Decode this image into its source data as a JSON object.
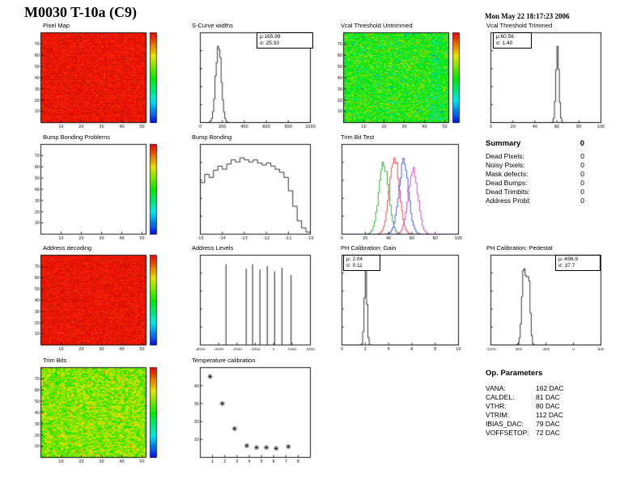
{
  "header": {
    "title": "M0030 T-10a (C9)",
    "date": "Mon May 22 18:17:23 2006"
  },
  "summary": {
    "title": "Summary",
    "total": "0",
    "rows": [
      {
        "label": "Dead Pixels:",
        "value": "0"
      },
      {
        "label": "Noisy Pixels:",
        "value": "0"
      },
      {
        "label": "Mask defects:",
        "value": "0"
      },
      {
        "label": "Dead Bumps:",
        "value": "0"
      },
      {
        "label": "Dead Trimbits:",
        "value": "0"
      },
      {
        "label": "Address Probl:",
        "value": "0"
      }
    ]
  },
  "op_parameters": {
    "title": "Op. Parameters",
    "rows": [
      {
        "label": "VANA:",
        "value": "162 DAC"
      },
      {
        "label": "CALDEL:",
        "value": "81 DAC"
      },
      {
        "label": "VTHR:",
        "value": "80 DAC"
      },
      {
        "label": "VTRIM:",
        "value": "112 DAC"
      },
      {
        "label": "IBIAS_DAC:",
        "value": "79 DAC"
      },
      {
        "label": "VOFFSETOP:",
        "value": "72 DAC"
      }
    ]
  },
  "chart_data": [
    {
      "id": "pixel-map",
      "title": "Pixel Map",
      "type": "heatmap",
      "style": "red",
      "cols": 52,
      "rows": 80,
      "x_ticks": [
        10,
        20,
        30,
        40,
        50
      ],
      "y_ticks": [
        10,
        20,
        30,
        40,
        50,
        60,
        70
      ],
      "colorbar": true,
      "description": "uniform pixel map, all 52x80 pixels at maximum (red)"
    },
    {
      "id": "scurve-widths",
      "title": "S-Curve widths",
      "type": "histogram",
      "xlim": [
        0,
        1000
      ],
      "x_ticks": [
        0,
        200,
        400,
        600,
        800,
        1000
      ],
      "components": [
        {
          "mu": 165.99,
          "sigma": 25.33,
          "amp": 1
        }
      ],
      "stats": {
        "mu_text": "μ:165.99",
        "sigma_text": "σ: 25.33",
        "pos": "right"
      }
    },
    {
      "id": "vcal-threshold-untrimmed",
      "title": "Vcal Threshold Untrimmed",
      "type": "heatmap",
      "style": "noise-green",
      "cols": 52,
      "rows": 80,
      "x_ticks": [
        10,
        20,
        30,
        40,
        50
      ],
      "y_ticks": [
        10,
        20,
        30,
        40,
        50,
        60,
        70
      ],
      "colorbar": true,
      "description": "noisy threshold map, mostly green with cyan/blue patches"
    },
    {
      "id": "vcal-threshold-trimmed",
      "title": "Vcal Threshold Trimmed",
      "type": "histogram",
      "xlim": [
        0,
        100
      ],
      "x_ticks": [
        0,
        20,
        40,
        60,
        80,
        100
      ],
      "components": [
        {
          "mu": 60.56,
          "sigma": 1.4,
          "amp": 1
        }
      ],
      "stats": {
        "mu_text": "μ:60.56",
        "sigma_text": "σ: 1.40",
        "pos": "left"
      }
    },
    {
      "id": "bump-bonding-problems",
      "title": "Bump Bonding Problems",
      "type": "heatmap",
      "style": "empty",
      "cols": 52,
      "rows": 80,
      "x_ticks": [
        10,
        20,
        30,
        40,
        50
      ],
      "y_ticks": [
        10,
        20,
        30,
        40,
        50,
        60,
        70
      ],
      "colorbar": true,
      "description": "empty white map - no bump bonding problems"
    },
    {
      "id": "bump-bonding",
      "title": "Bump Bonding",
      "type": "histogram",
      "xlim": [
        -15,
        -10
      ],
      "x_ticks": [
        -15,
        -14,
        -13,
        -12,
        -11,
        -10
      ],
      "bins": [
        0.5,
        0.58,
        0.55,
        0.62,
        0.66,
        0.63,
        0.68,
        0.72,
        0.7,
        0.74,
        0.72,
        0.7,
        0.72,
        0.69,
        0.67,
        0.69,
        0.66,
        0.63,
        0.6,
        0.55,
        0.42,
        0.27,
        0.13,
        0.06,
        0.02
      ]
    },
    {
      "id": "trim-bit-test",
      "title": "Trim Bit Test",
      "type": "multi-histogram",
      "xlim": [
        0,
        100
      ],
      "x_ticks": [
        0,
        20,
        40,
        60,
        80,
        100
      ],
      "series": [
        {
          "color": "#009900",
          "mu": 36,
          "sigma": 4.2,
          "amp": 0.9
        },
        {
          "color": "#dd2222",
          "mu": 45,
          "sigma": 4.2,
          "amp": 1
        },
        {
          "color": "#2233cc",
          "mu": 53,
          "sigma": 4.2,
          "amp": 0.92
        },
        {
          "color": "#bb22bb",
          "mu": 61,
          "sigma": 4.2,
          "amp": 0.85
        }
      ]
    },
    {
      "id": "address-decoding",
      "title": "Address decoding",
      "type": "heatmap",
      "style": "red",
      "cols": 52,
      "rows": 80,
      "x_ticks": [
        10,
        20,
        30,
        40,
        50
      ],
      "y_ticks": [
        10,
        20,
        30,
        40,
        50,
        60,
        70
      ],
      "colorbar": true,
      "description": "uniform map, all pixels decode correctly (red)"
    },
    {
      "id": "address-levels",
      "title": "Address Levels",
      "type": "spikes",
      "xlim": [
        -4000,
        2000
      ],
      "x_ticks": [
        -4000,
        -3000,
        -2000,
        -1000,
        0,
        1000,
        2000
      ],
      "spikes": [
        {
          "x": -2600,
          "h": 0.9
        },
        {
          "x": -1500,
          "h": 0.85
        },
        {
          "x": -1150,
          "h": 0.9
        },
        {
          "x": -750,
          "h": 0.84
        },
        {
          "x": -350,
          "h": 0.88
        },
        {
          "x": 50,
          "h": 0.82
        },
        {
          "x": 450,
          "h": 0.86
        },
        {
          "x": 950,
          "h": 0.78
        }
      ]
    },
    {
      "id": "ph-calibration-gain",
      "title": "PH Calibration: Gain",
      "type": "histogram",
      "xlim": [
        0,
        10
      ],
      "x_ticks": [
        0,
        2,
        4,
        6,
        8,
        10
      ],
      "components": [
        {
          "mu": 2.04,
          "sigma": 0.11,
          "amp": 1
        }
      ],
      "stats": {
        "mu_text": "μ: 2.04",
        "sigma_text": "σ: 0.11",
        "pos": "left"
      }
    },
    {
      "id": "ph-calibration-pedestal",
      "title": "PH Calibration: Pedestal",
      "type": "histogram",
      "xlim": [
        -1200,
        400
      ],
      "x_ticks": [
        -1200,
        -800,
        -400,
        0,
        400
      ],
      "components": [
        {
          "mu": -715,
          "sigma": 30,
          "amp": 1
        },
        {
          "mu": -648,
          "sigma": 22,
          "amp": 0.8
        }
      ],
      "stats": {
        "mu_text": "μ:-696.9",
        "sigma_text": "σ: 37.7",
        "pos": "right"
      }
    },
    {
      "id": "trim-bits",
      "title": "Trim Bits",
      "type": "heatmap",
      "style": "noise-yellowgreen",
      "cols": 52,
      "rows": 80,
      "x_ticks": [
        10,
        20,
        30,
        40,
        50
      ],
      "y_ticks": [
        10,
        20,
        30,
        40,
        50,
        60,
        70
      ],
      "colorbar": true,
      "description": "trim bit map, green/yellow noise"
    },
    {
      "id": "temperature-calibration",
      "title": "Temperature calibration",
      "type": "scatter",
      "marker": "star",
      "xlim": [
        0,
        9
      ],
      "ylim": [
        0,
        50
      ],
      "x_ticks": [
        1,
        2,
        3,
        4,
        5,
        6,
        7,
        8
      ],
      "y_ticks": [
        10,
        20,
        30,
        40
      ],
      "points": [
        [
          0.8,
          45
        ],
        [
          1.8,
          30
        ],
        [
          2.8,
          16
        ],
        [
          3.8,
          6.5
        ],
        [
          4.6,
          5.5
        ],
        [
          5.4,
          5.5
        ],
        [
          6.2,
          5
        ],
        [
          7.2,
          6
        ]
      ]
    }
  ]
}
